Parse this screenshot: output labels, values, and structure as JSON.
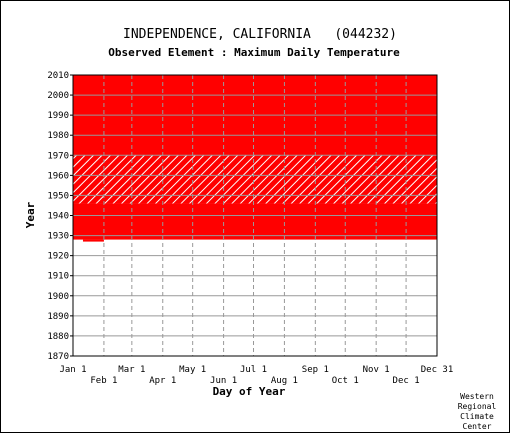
{
  "chart_data": {
    "type": "heatmap",
    "title": "INDEPENDENCE, CALIFORNIA   (044232)",
    "subtitle": "Observed Element : Maximum Daily Temperature",
    "xlabel": "Day of Year",
    "ylabel": "Year",
    "y_ticks": [
      2010,
      2000,
      1990,
      1980,
      1970,
      1960,
      1950,
      1940,
      1930,
      1920,
      1910,
      1900,
      1890,
      1880,
      1870
    ],
    "ylim": [
      1870,
      2010
    ],
    "x_ticks_top_row": [
      "Jan 1",
      "Mar 1",
      "May 1",
      "Jul 1",
      "Sep 1",
      "Nov 1",
      "Dec 31"
    ],
    "x_ticks_bottom_row": [
      "Feb 1",
      "Apr 1",
      "Jun 1",
      "Aug 1",
      "Oct 1",
      "Dec 1"
    ],
    "grid": true,
    "credit": [
      "Western",
      "Regional",
      "Climate",
      "Center"
    ],
    "colors": {
      "data_present": "#ff0000",
      "missing": "#ffffff",
      "grid": "#999999"
    },
    "coverage": [
      {
        "from_year": 1927,
        "to_year": 1928,
        "from_day": 10,
        "to_day": 30,
        "status": "present"
      },
      {
        "from_year": 1928,
        "to_year": 1946,
        "from_day": 0,
        "to_day": 364,
        "status": "present"
      },
      {
        "from_year": 1946,
        "to_year": 1970,
        "from_day": 0,
        "to_day": 364,
        "status": "partial"
      },
      {
        "from_year": 1970,
        "to_year": 2010,
        "from_day": 0,
        "to_day": 364,
        "status": "present"
      }
    ]
  }
}
